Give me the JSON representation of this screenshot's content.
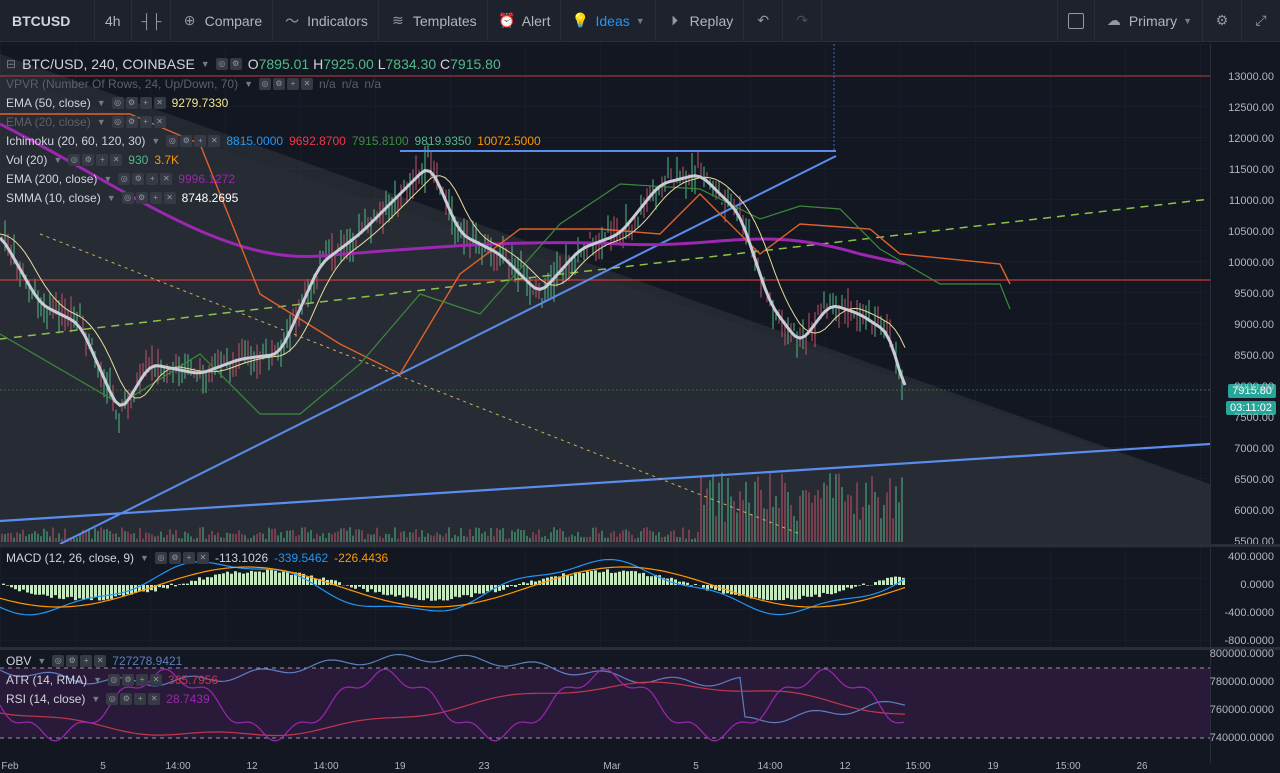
{
  "toolbar": {
    "symbol": "BTCUSD",
    "interval": "4h",
    "compare": "Compare",
    "indicators": "Indicators",
    "templates": "Templates",
    "alert": "Alert",
    "ideas": "Ideas",
    "replay": "Replay",
    "layout": "Primary"
  },
  "main": {
    "title": "BTC/USD, 240, COINBASE",
    "ohlc": {
      "o_label": "O",
      "o": "7895.01",
      "h_label": "H",
      "h": "7925.00",
      "l_label": "L",
      "l": "7834.30",
      "c_label": "C",
      "c": "7915.80"
    },
    "legends": [
      {
        "name": "VPVR (Number Of Rows, 24, Up/Down, 70)",
        "values": [
          "n/a",
          "n/a",
          "n/a"
        ],
        "faded": true
      },
      {
        "name": "EMA (50, close)",
        "values": [
          "9279.7330"
        ],
        "colors": [
          "#f0e68c"
        ]
      },
      {
        "name": "EMA (20, close)",
        "values": [],
        "faded": true
      },
      {
        "name": "Ichimoku (20, 60, 120, 30)",
        "values": [
          "8815.0000",
          "9692.8700",
          "7915.8100",
          "9819.9350",
          "10072.5000"
        ],
        "colors": [
          "#2196f3",
          "#f23645",
          "#3f8f3f",
          "#53b987",
          "#ff9800"
        ]
      },
      {
        "name": "Vol (20)",
        "values": [
          "930",
          "3.7K"
        ],
        "colors": [
          "#53b987",
          "#ff9800"
        ]
      },
      {
        "name": "EMA (200, close)",
        "values": [
          "9996.1272"
        ],
        "colors": [
          "#9c27b0"
        ]
      },
      {
        "name": "SMMA (10, close)",
        "values": [
          "8748.2695"
        ],
        "colors": [
          "#ffffff"
        ]
      }
    ],
    "price_ticks": [
      "13000.00",
      "12500.00",
      "12000.00",
      "11500.00",
      "11000.00",
      "10500.00",
      "10000.00",
      "9500.00",
      "9000.00",
      "8500.00",
      "8000.00",
      "7500.00",
      "7000.00",
      "6500.00",
      "6000.00",
      "5500.00"
    ],
    "last_price": "7915.80",
    "countdown": "03:11:02"
  },
  "macd": {
    "name": "MACD (12, 26, close, 9)",
    "values": [
      "-113.1026",
      "-339.5462",
      "-226.4436"
    ],
    "colors": [
      "#d1d4dc",
      "#2196f3",
      "#ff9800"
    ],
    "ticks": [
      "400.0000",
      "0.0000",
      "-400.0000",
      "-800.0000"
    ]
  },
  "osc": {
    "legends": [
      {
        "name": "OBV",
        "values": [
          "727278.9421"
        ],
        "colors": [
          "#5d7fc0"
        ]
      },
      {
        "name": "ATR (14, RMA)",
        "values": [
          "365.7956"
        ],
        "colors": [
          "#c0394b"
        ]
      },
      {
        "name": "RSI (14, close)",
        "values": [
          "28.7439"
        ],
        "colors": [
          "#9c27b0"
        ]
      }
    ],
    "ticks": [
      "800000.0000",
      "780000.0000",
      "760000.0000",
      "740000.0000"
    ]
  },
  "time_axis": [
    "Feb",
    "5",
    "14:00",
    "12",
    "14:00",
    "19",
    "23",
    "Mar",
    "5",
    "14:00",
    "12",
    "15:00",
    "19",
    "15:00",
    "26"
  ]
}
